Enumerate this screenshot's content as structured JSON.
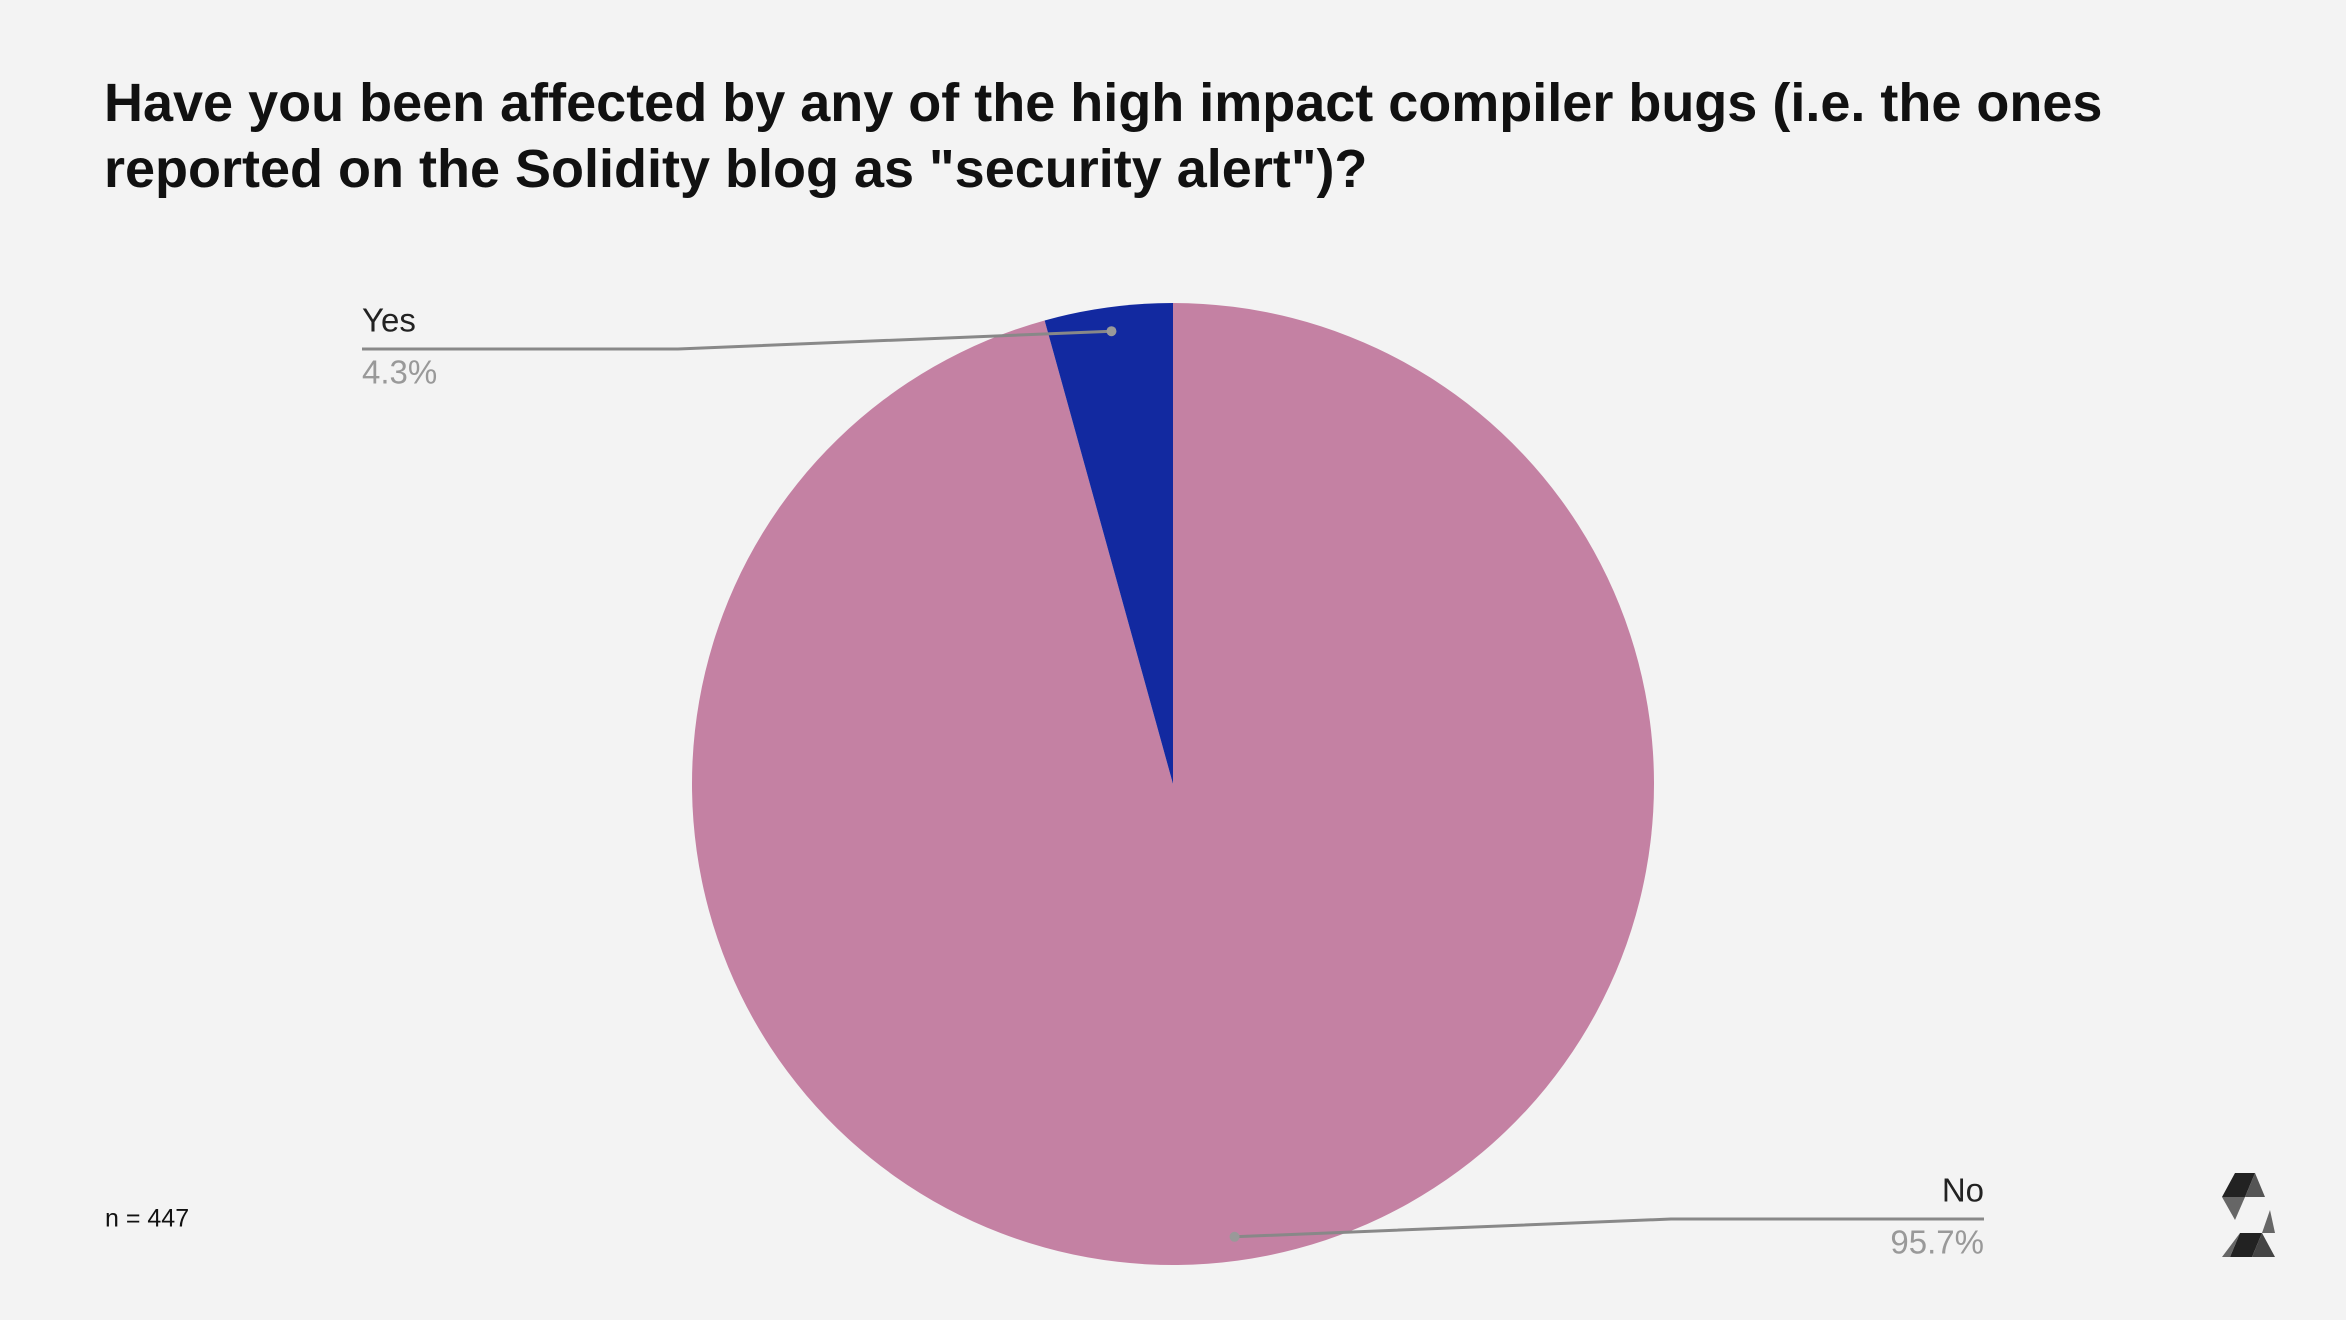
{
  "chart_data": {
    "type": "pie",
    "title": "Have you been affected by any of the high impact compiler bugs (i.e. the ones reported on the Solidity blog as \"security alert\")?",
    "categories": [
      "No",
      "Yes"
    ],
    "values": [
      95.7,
      4.3
    ],
    "value_labels": [
      "95.7%",
      "4.3%"
    ],
    "colors": [
      "#c481a3",
      "#1229a0"
    ],
    "annotation": "n = 447"
  }
}
